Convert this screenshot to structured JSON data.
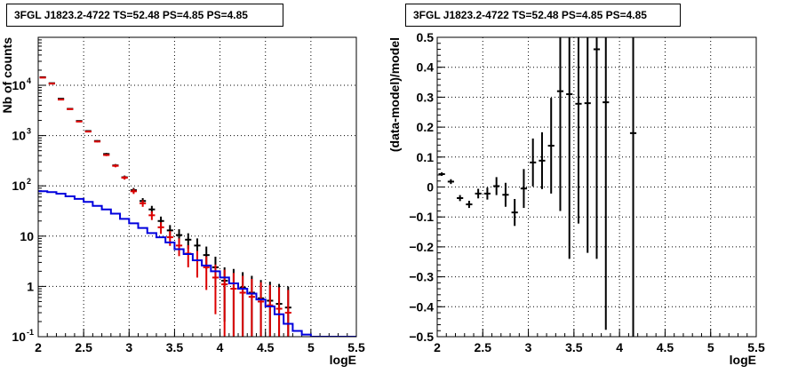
{
  "chart_data": [
    {
      "type": "step-errorbar",
      "title": "3FGL J1823.2-4722 TS=52.48 PS=4.85 PS=4.85",
      "xlabel": "logE",
      "ylabel": "Nb of counts",
      "xlim": [
        2,
        5.5
      ],
      "ylim": [
        0.1,
        90000
      ],
      "yscale": "log",
      "grid": true,
      "x_ticks": [
        "2",
        "2.5",
        "3",
        "3.5",
        "4",
        "4.5",
        "5",
        "5.5"
      ],
      "y_ticks": [
        {
          "v": 0.1,
          "label": "10",
          "exp": "-1"
        },
        {
          "v": 1,
          "label": "1",
          "exp": ""
        },
        {
          "v": 10,
          "label": "10",
          "exp": ""
        },
        {
          "v": 100,
          "label": "10",
          "exp": "2"
        },
        {
          "v": 1000,
          "label": "10",
          "exp": "3"
        },
        {
          "v": 10000,
          "label": "10",
          "exp": "4"
        }
      ],
      "bin_width": 0.1,
      "series": [
        {
          "color": "#000000",
          "style": "errorbar",
          "x": [
            2.05,
            2.15,
            2.25,
            2.35,
            2.45,
            2.55,
            2.65,
            2.75,
            2.85,
            2.95,
            3.05,
            3.15,
            3.25,
            3.35,
            3.45,
            3.55,
            3.65,
            3.75,
            3.85,
            3.95,
            4.05,
            4.15,
            4.25,
            4.35,
            4.45,
            4.55,
            4.65,
            4.75
          ],
          "y": [
            14500,
            11000,
            5400,
            3400,
            1950,
            1230,
            780,
            430,
            255,
            148,
            82,
            50,
            34,
            20,
            13,
            10.5,
            8.5,
            6.5,
            4.2,
            2.4,
            1.3,
            1.15,
            0.95,
            0.75,
            0.58,
            0.52,
            0.45,
            0.38
          ],
          "yerr": [
            120,
            105,
            75,
            58,
            44,
            35,
            28,
            21,
            16,
            12,
            9,
            7,
            6,
            4.5,
            3.6,
            3.2,
            2.9,
            2.5,
            2.0,
            1.5,
            1.1,
            1.07,
            0.97,
            0.87,
            0.76,
            0.72,
            0.67,
            0.62
          ]
        },
        {
          "color": "#dd0000",
          "style": "errorbar",
          "x": [
            2.05,
            2.15,
            2.25,
            2.35,
            2.45,
            2.55,
            2.65,
            2.75,
            2.85,
            2.95,
            3.05,
            3.15,
            3.25,
            3.35,
            3.45,
            3.55,
            3.65,
            3.75,
            3.85,
            3.95,
            4.05,
            4.15,
            4.25,
            4.35,
            4.45,
            4.55,
            4.65,
            4.75
          ],
          "y": [
            14200,
            10800,
            5200,
            3350,
            1900,
            1200,
            760,
            410,
            250,
            145,
            78,
            45,
            26,
            15,
            9.5,
            6.5,
            4.5,
            3.3,
            2.4,
            1.5,
            1.1,
            0.9,
            0.75,
            0.62,
            0.5,
            0.42,
            0.36,
            0.3
          ],
          "yerr": [
            120,
            104,
            72,
            58,
            44,
            35,
            28,
            20,
            16,
            12,
            9,
            6.7,
            5.1,
            3.9,
            3.1,
            2.5,
            2.1,
            1.8,
            1.55,
            1.22,
            1.05,
            0.95,
            0.87,
            0.79,
            0.71,
            0.65,
            0.6,
            0.55
          ]
        },
        {
          "color": "#0000dd",
          "style": "step",
          "x": [
            2.05,
            2.15,
            2.25,
            2.35,
            2.45,
            2.55,
            2.65,
            2.75,
            2.85,
            2.95,
            3.05,
            3.15,
            3.25,
            3.35,
            3.45,
            3.55,
            3.65,
            3.75,
            3.85,
            3.95,
            4.05,
            4.15,
            4.25,
            4.35,
            4.45,
            4.55,
            4.65,
            4.75,
            4.85,
            4.95,
            5.05,
            5.15,
            5.25,
            5.35,
            5.45
          ],
          "y": [
            78,
            75,
            70,
            62,
            55,
            48,
            40,
            34,
            28,
            22,
            18,
            14.5,
            11.5,
            9.5,
            7.5,
            5.5,
            4.4,
            3.3,
            2.6,
            2.0,
            1.5,
            1.15,
            0.9,
            0.72,
            0.55,
            0.4,
            0.28,
            0.18,
            0.13,
            0.11,
            0.1,
            0.1,
            0.1,
            0.1,
            0.1
          ]
        }
      ]
    },
    {
      "type": "errorbar",
      "title": "3FGL J1823.2-4722 TS=52.48 PS=4.85 PS=4.85",
      "xlabel": "logE",
      "ylabel": "(data-model)/model",
      "xlim": [
        2,
        5.5
      ],
      "ylim": [
        -0.5,
        0.5
      ],
      "grid": true,
      "x_ticks": [
        "2",
        "2.5",
        "3",
        "3.5",
        "4",
        "4.5",
        "5",
        "5.5"
      ],
      "y_ticks": [
        "−0.5",
        "−0.4",
        "−0.3",
        "−0.2",
        "−0.1",
        "0",
        "0.1",
        "0.2",
        "0.3",
        "0.4",
        "0.5"
      ],
      "bin_width": 0.1,
      "series": [
        {
          "color": "#000000",
          "style": "errorbar",
          "x": [
            2.05,
            2.15,
            2.25,
            2.35,
            2.45,
            2.55,
            2.65,
            2.75,
            2.85,
            2.95,
            3.05,
            3.15,
            3.25,
            3.35,
            3.45,
            3.55,
            3.65,
            3.75,
            3.85,
            4.15
          ],
          "y": [
            0.043,
            0.018,
            -0.037,
            -0.058,
            -0.022,
            -0.022,
            0.003,
            -0.026,
            -0.085,
            -0.005,
            0.082,
            0.088,
            0.138,
            0.32,
            0.31,
            0.278,
            0.28,
            0.46,
            0.283,
            0.18
          ],
          "yerr": [
            0.006,
            0.008,
            0.01,
            0.012,
            0.016,
            0.02,
            0.03,
            0.04,
            0.045,
            0.065,
            0.08,
            0.095,
            0.16,
            0.4,
            0.55,
            0.4,
            0.5,
            0.7,
            0.76,
            0.8
          ]
        }
      ]
    }
  ]
}
